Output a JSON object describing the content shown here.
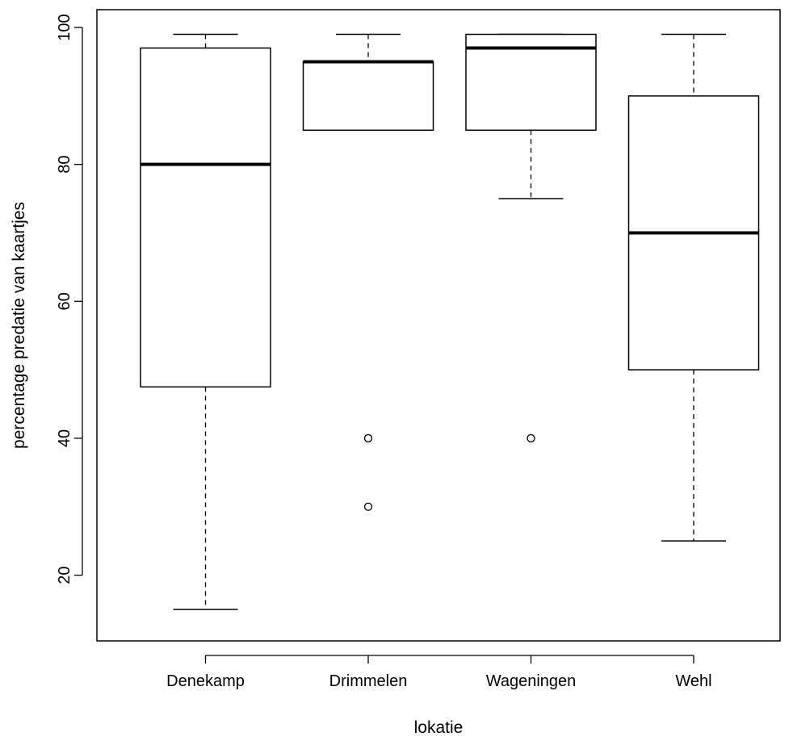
{
  "chart_data": {
    "type": "box",
    "title": "",
    "xlabel": "lokatie",
    "ylabel": "percentage predatie van kaartjes",
    "categories": [
      "Denekamp",
      "Drimmelen",
      "Wageningen",
      "Wehl"
    ],
    "boxes": [
      {
        "name": "Denekamp",
        "whisker_low": 15,
        "q1": 47.5,
        "median": 80,
        "q3": 97,
        "whisker_high": 99,
        "outliers": []
      },
      {
        "name": "Drimmelen",
        "whisker_low": 85,
        "q1": 85,
        "median": 95,
        "q3": 95,
        "whisker_high": 99,
        "outliers": [
          40,
          30
        ]
      },
      {
        "name": "Wageningen",
        "whisker_low": 75,
        "q1": 85,
        "median": 97,
        "q3": 99,
        "whisker_high": 99,
        "outliers": [
          40
        ]
      },
      {
        "name": "Wehl",
        "whisker_low": 25,
        "q1": 50,
        "median": 70,
        "q3": 90,
        "whisker_high": 99,
        "outliers": []
      }
    ],
    "ylim": [
      10.4,
      102.6
    ],
    "yticks": [
      20,
      40,
      60,
      80,
      100
    ],
    "grid": false,
    "legend": "none"
  }
}
